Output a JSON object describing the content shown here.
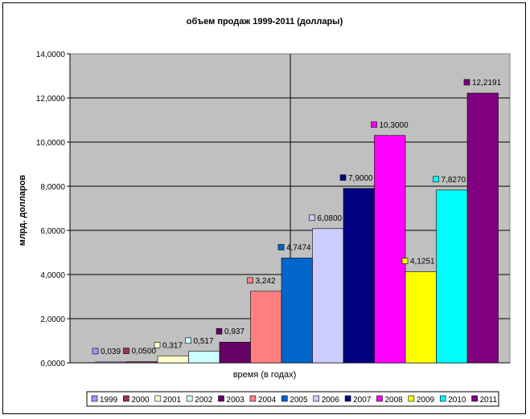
{
  "chart_data": {
    "type": "bar",
    "title": "объем продаж 1999-2011 (доллары)",
    "xlabel": "время (в годах)",
    "ylabel": "млрд. долларов",
    "ylim": [
      0,
      14
    ],
    "yticks": [
      "0,0000",
      "2,0000",
      "4,0000",
      "6,0000",
      "8,0000",
      "10,0000",
      "12,0000",
      "14,0000"
    ],
    "grid": true,
    "legend_position": "bottom",
    "series": [
      {
        "name": "1999",
        "value": 0.039,
        "label": "0,039",
        "color": "#9999ff"
      },
      {
        "name": "2000",
        "value": 0.05,
        "label": "0,0500",
        "color": "#993366"
      },
      {
        "name": "2001",
        "value": 0.317,
        "label": "0,317",
        "color": "#ffffcc"
      },
      {
        "name": "2002",
        "value": 0.517,
        "label": "0,517",
        "color": "#ccffff"
      },
      {
        "name": "2003",
        "value": 0.937,
        "label": "0,937",
        "color": "#660066"
      },
      {
        "name": "2004",
        "value": 3.242,
        "label": "3,242",
        "color": "#ff8080"
      },
      {
        "name": "2005",
        "value": 4.7474,
        "label": "4,7474",
        "color": "#0066cc"
      },
      {
        "name": "2006",
        "value": 6.08,
        "label": "6,0800",
        "color": "#ccccff"
      },
      {
        "name": "2007",
        "value": 7.9,
        "label": "7,9000",
        "color": "#000080"
      },
      {
        "name": "2008",
        "value": 10.3,
        "label": "10,3000",
        "color": "#ff00ff"
      },
      {
        "name": "2009",
        "value": 4.1251,
        "label": "4,1251",
        "color": "#ffff00"
      },
      {
        "name": "2010",
        "value": 7.827,
        "label": "7,8270",
        "color": "#00ffff"
      },
      {
        "name": "2011",
        "value": 12.2191,
        "label": "12,2191",
        "color": "#800080"
      }
    ]
  }
}
